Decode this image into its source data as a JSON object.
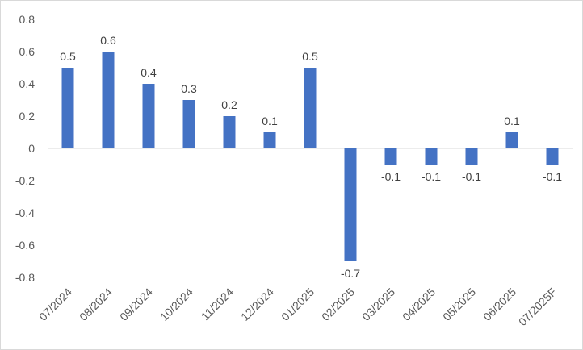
{
  "chart_data": {
    "type": "bar",
    "title": "",
    "xlabel": "",
    "ylabel": "",
    "ylim": [
      -0.8,
      0.8
    ],
    "ytick_step": 0.2,
    "yticks": [
      "0.8",
      "0.6",
      "0.4",
      "0.2",
      "0",
      "-0.2",
      "-0.4",
      "-0.6",
      "-0.8"
    ],
    "grid": false,
    "legend": "none",
    "bar_color": "#4472C4",
    "categories": [
      "07/2024",
      "08/2024",
      "09/2024",
      "10/2024",
      "11/2024",
      "12/2024",
      "01/2025",
      "02/2025",
      "03/2025",
      "04/2025",
      "05/2025",
      "06/2025",
      "07/2025F"
    ],
    "values": [
      0.5,
      0.6,
      0.4,
      0.3,
      0.2,
      0.1,
      0.5,
      -0.7,
      -0.1,
      -0.1,
      -0.1,
      0.1,
      -0.1
    ],
    "data_labels": [
      "0.5",
      "0.6",
      "0.4",
      "0.3",
      "0.2",
      "0.1",
      "0.5",
      "-0.7",
      "-0.1",
      "-0.1",
      "-0.1",
      "0.1",
      "-0.1"
    ]
  }
}
